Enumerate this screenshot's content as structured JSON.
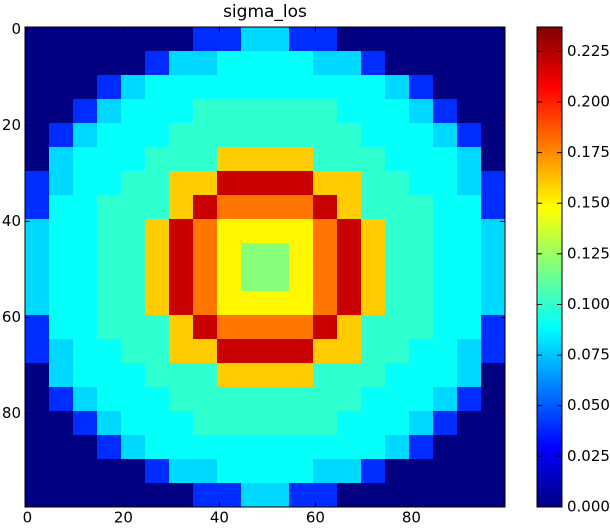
{
  "chart_data": {
    "type": "heatmap",
    "title": "sigma_los",
    "colormap": "jet",
    "xlim": [
      -0.5,
      99.5
    ],
    "ylim": [
      99.5,
      -0.5
    ],
    "xticks": [
      0,
      20,
      40,
      60,
      80
    ],
    "yticks": [
      0,
      20,
      40,
      60,
      80
    ],
    "clim": [
      0,
      0.237
    ],
    "cticks": [
      {
        "value": 0,
        "label": "0.000"
      },
      {
        "value": 0.025,
        "label": "0.025"
      },
      {
        "value": 0.05,
        "label": "0.050"
      },
      {
        "value": 0.075,
        "label": "0.075"
      },
      {
        "value": 0.1,
        "label": "0.100"
      },
      {
        "value": 0.125,
        "label": "0.125"
      },
      {
        "value": 0.15,
        "label": "0.150"
      },
      {
        "value": 0.175,
        "label": "0.175"
      },
      {
        "value": 0.2,
        "label": "0.200"
      },
      {
        "value": 0.225,
        "label": "0.225"
      }
    ],
    "z": [
      [
        0,
        0,
        0,
        0,
        0,
        0,
        0,
        0.04,
        0.04,
        0.08,
        0.08,
        0.04,
        0.04,
        0,
        0,
        0,
        0,
        0,
        0,
        0
      ],
      [
        0,
        0,
        0,
        0,
        0,
        0.04,
        0.08,
        0.08,
        0.09,
        0.09,
        0.09,
        0.09,
        0.08,
        0.08,
        0.04,
        0,
        0,
        0,
        0,
        0
      ],
      [
        0,
        0,
        0,
        0.04,
        0.08,
        0.09,
        0.09,
        0.09,
        0.09,
        0.09,
        0.09,
        0.09,
        0.09,
        0.09,
        0.09,
        0.08,
        0.04,
        0,
        0,
        0
      ],
      [
        0,
        0,
        0.04,
        0.08,
        0.09,
        0.09,
        0.09,
        0.1,
        0.1,
        0.1,
        0.1,
        0.1,
        0.1,
        0.09,
        0.09,
        0.09,
        0.08,
        0.04,
        0,
        0
      ],
      [
        0,
        0.04,
        0.08,
        0.09,
        0.09,
        0.09,
        0.1,
        0.1,
        0.1,
        0.1,
        0.1,
        0.1,
        0.1,
        0.1,
        0.09,
        0.09,
        0.09,
        0.08,
        0.04,
        0
      ],
      [
        0,
        0.08,
        0.09,
        0.09,
        0.09,
        0.1,
        0.1,
        0.1,
        0.16,
        0.16,
        0.16,
        0.16,
        0.1,
        0.1,
        0.1,
        0.09,
        0.09,
        0.09,
        0.08,
        0
      ],
      [
        0.04,
        0.08,
        0.09,
        0.09,
        0.1,
        0.1,
        0.16,
        0.16,
        0.22,
        0.22,
        0.22,
        0.22,
        0.16,
        0.16,
        0.1,
        0.1,
        0.09,
        0.09,
        0.08,
        0.04
      ],
      [
        0.04,
        0.09,
        0.09,
        0.1,
        0.1,
        0.1,
        0.16,
        0.22,
        0.18,
        0.18,
        0.18,
        0.18,
        0.22,
        0.16,
        0.1,
        0.1,
        0.1,
        0.09,
        0.09,
        0.04
      ],
      [
        0.08,
        0.09,
        0.09,
        0.1,
        0.1,
        0.16,
        0.22,
        0.18,
        0.15,
        0.15,
        0.15,
        0.15,
        0.18,
        0.22,
        0.16,
        0.1,
        0.1,
        0.09,
        0.09,
        0.08
      ],
      [
        0.08,
        0.09,
        0.09,
        0.1,
        0.1,
        0.16,
        0.22,
        0.18,
        0.15,
        0.12,
        0.12,
        0.15,
        0.18,
        0.22,
        0.16,
        0.1,
        0.1,
        0.09,
        0.09,
        0.08
      ],
      [
        0.08,
        0.09,
        0.09,
        0.1,
        0.1,
        0.16,
        0.22,
        0.18,
        0.15,
        0.12,
        0.12,
        0.15,
        0.18,
        0.22,
        0.16,
        0.1,
        0.1,
        0.09,
        0.09,
        0.08
      ],
      [
        0.08,
        0.09,
        0.09,
        0.1,
        0.1,
        0.16,
        0.22,
        0.18,
        0.15,
        0.15,
        0.15,
        0.15,
        0.18,
        0.22,
        0.16,
        0.1,
        0.1,
        0.09,
        0.09,
        0.08
      ],
      [
        0.04,
        0.09,
        0.09,
        0.1,
        0.1,
        0.1,
        0.16,
        0.22,
        0.18,
        0.18,
        0.18,
        0.18,
        0.22,
        0.16,
        0.1,
        0.1,
        0.1,
        0.09,
        0.09,
        0.04
      ],
      [
        0.04,
        0.08,
        0.09,
        0.09,
        0.1,
        0.1,
        0.16,
        0.16,
        0.22,
        0.22,
        0.22,
        0.22,
        0.16,
        0.16,
        0.1,
        0.1,
        0.09,
        0.09,
        0.08,
        0.04
      ],
      [
        0,
        0.08,
        0.09,
        0.09,
        0.09,
        0.1,
        0.1,
        0.1,
        0.16,
        0.16,
        0.16,
        0.16,
        0.1,
        0.1,
        0.1,
        0.09,
        0.09,
        0.09,
        0.08,
        0
      ],
      [
        0,
        0.04,
        0.08,
        0.09,
        0.09,
        0.09,
        0.1,
        0.1,
        0.1,
        0.1,
        0.1,
        0.1,
        0.1,
        0.1,
        0.09,
        0.09,
        0.09,
        0.08,
        0.04,
        0
      ],
      [
        0,
        0,
        0.04,
        0.08,
        0.09,
        0.09,
        0.09,
        0.1,
        0.1,
        0.1,
        0.1,
        0.1,
        0.1,
        0.09,
        0.09,
        0.09,
        0.08,
        0.04,
        0,
        0
      ],
      [
        0,
        0,
        0,
        0.04,
        0.08,
        0.09,
        0.09,
        0.09,
        0.09,
        0.09,
        0.09,
        0.09,
        0.09,
        0.09,
        0.09,
        0.08,
        0.04,
        0,
        0,
        0
      ],
      [
        0,
        0,
        0,
        0,
        0,
        0.04,
        0.08,
        0.08,
        0.09,
        0.09,
        0.09,
        0.09,
        0.08,
        0.08,
        0.04,
        0,
        0,
        0,
        0,
        0
      ],
      [
        0,
        0,
        0,
        0,
        0,
        0,
        0,
        0.04,
        0.04,
        0.08,
        0.08,
        0.04,
        0.04,
        0,
        0,
        0,
        0,
        0,
        0,
        0
      ]
    ]
  }
}
